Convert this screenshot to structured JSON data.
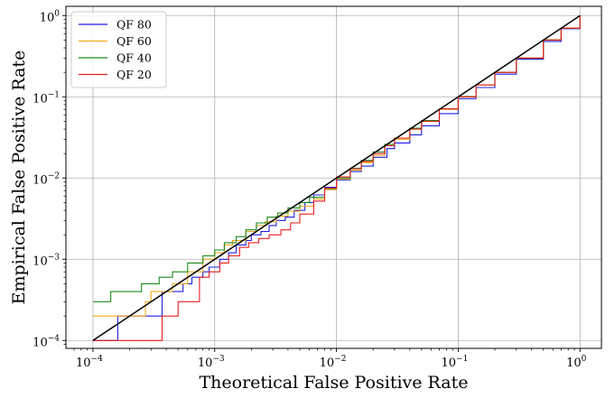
{
  "chart_data": {
    "type": "line",
    "title": "",
    "xlabel": "Theoretical False Positive Rate",
    "ylabel": "Empirical False Positive Rate",
    "xscale": "log",
    "yscale": "log",
    "xlim": [
      6e-05,
      1.5
    ],
    "ylim": [
      8e-05,
      1.3
    ],
    "grid": true,
    "legend_position": "top-left",
    "x_ticks": [
      {
        "value": 0.0001,
        "base": "10",
        "exp": "−4"
      },
      {
        "value": 0.001,
        "base": "10",
        "exp": "−3"
      },
      {
        "value": 0.01,
        "base": "10",
        "exp": "−2"
      },
      {
        "value": 0.1,
        "base": "10",
        "exp": "−1"
      },
      {
        "value": 1,
        "base": "10",
        "exp": "0"
      }
    ],
    "y_ticks": [
      {
        "value": 0.0001,
        "base": "10",
        "exp": "−4"
      },
      {
        "value": 0.001,
        "base": "10",
        "exp": "−3"
      },
      {
        "value": 0.01,
        "base": "10",
        "exp": "−2"
      },
      {
        "value": 0.1,
        "base": "10",
        "exp": "−1"
      },
      {
        "value": 1,
        "base": "10",
        "exp": "0"
      }
    ],
    "series": [
      {
        "name": "QF 80",
        "color": "#1f1fe6",
        "step": true,
        "x": [
          0.0001,
          0.00015,
          0.00016,
          0.00036,
          0.00037,
          0.00055,
          0.00065,
          0.0008,
          0.0009,
          0.0011,
          0.0013,
          0.0015,
          0.0018,
          0.002,
          0.0024,
          0.0028,
          0.0032,
          0.0038,
          0.0045,
          0.0055,
          0.0065,
          0.008,
          0.01,
          0.013,
          0.016,
          0.02,
          0.026,
          0.03,
          0.04,
          0.05,
          0.07,
          0.1,
          0.14,
          0.2,
          0.3,
          0.5,
          0.7,
          1
        ],
        "y": [
          0.0001,
          0.0001,
          0.0002,
          0.0002,
          0.0004,
          0.0005,
          0.0006,
          0.0007,
          0.0008,
          0.001,
          0.0012,
          0.0015,
          0.0017,
          0.002,
          0.0022,
          0.0026,
          0.003,
          0.0033,
          0.004,
          0.005,
          0.0062,
          0.0077,
          0.0095,
          0.012,
          0.014,
          0.018,
          0.023,
          0.027,
          0.034,
          0.044,
          0.062,
          0.095,
          0.13,
          0.19,
          0.29,
          0.48,
          0.69,
          1
        ]
      },
      {
        "name": "QF 60",
        "color": "#f0a81c",
        "step": true,
        "x": [
          0.0001,
          0.00025,
          0.00027,
          0.0003,
          0.00045,
          0.0006,
          0.0008,
          0.001,
          0.0012,
          0.0014,
          0.0018,
          0.0022,
          0.0026,
          0.0032,
          0.004,
          0.005,
          0.0065,
          0.008,
          0.01,
          0.013,
          0.016,
          0.02,
          0.025,
          0.03,
          0.04,
          0.05,
          0.07,
          0.1,
          0.14,
          0.2,
          0.3,
          0.5,
          0.7,
          1
        ],
        "y": [
          0.0002,
          0.0002,
          0.0003,
          0.0004,
          0.0005,
          0.0007,
          0.001,
          0.0012,
          0.0015,
          0.0017,
          0.0022,
          0.0026,
          0.0029,
          0.0034,
          0.0039,
          0.0045,
          0.0055,
          0.0072,
          0.0097,
          0.0125,
          0.0155,
          0.019,
          0.025,
          0.03,
          0.04,
          0.05,
          0.07,
          0.1,
          0.14,
          0.2,
          0.3,
          0.5,
          0.7,
          1
        ]
      },
      {
        "name": "QF 40",
        "color": "#1a8a1a",
        "step": true,
        "x": [
          0.0001,
          0.00014,
          0.00025,
          0.00035,
          0.00045,
          0.0006,
          0.0008,
          0.001,
          0.0012,
          0.0015,
          0.0018,
          0.0022,
          0.0027,
          0.0033,
          0.004,
          0.005,
          0.006,
          0.008,
          0.01,
          0.013,
          0.016,
          0.02,
          0.025,
          0.03,
          0.04,
          0.05,
          0.07,
          0.1,
          0.14,
          0.2,
          0.3,
          0.5,
          0.7,
          1
        ],
        "y": [
          0.0003,
          0.0004,
          0.0005,
          0.0006,
          0.0007,
          0.0009,
          0.0011,
          0.0013,
          0.0016,
          0.0019,
          0.0023,
          0.0028,
          0.0033,
          0.0037,
          0.0043,
          0.005,
          0.0058,
          0.0074,
          0.01,
          0.0132,
          0.0165,
          0.021,
          0.026,
          0.031,
          0.041,
          0.051,
          0.071,
          0.101,
          0.14,
          0.2,
          0.3,
          0.5,
          0.7,
          1
        ]
      },
      {
        "name": "QF 20",
        "color": "#e81d1d",
        "step": true,
        "x": [
          0.0001,
          0.00035,
          0.00037,
          0.0005,
          0.0007,
          0.00075,
          0.0009,
          0.0011,
          0.0013,
          0.0016,
          0.0019,
          0.0023,
          0.0028,
          0.0035,
          0.0042,
          0.005,
          0.0065,
          0.008,
          0.01,
          0.013,
          0.016,
          0.02,
          0.025,
          0.03,
          0.04,
          0.05,
          0.07,
          0.1,
          0.14,
          0.2,
          0.3,
          0.5,
          0.7,
          1
        ],
        "y": [
          0.0001,
          0.0001,
          0.0002,
          0.0003,
          0.0003,
          0.0006,
          0.0007,
          0.0009,
          0.0011,
          0.0014,
          0.0016,
          0.0018,
          0.002,
          0.0023,
          0.0028,
          0.0036,
          0.0052,
          0.0075,
          0.0103,
          0.013,
          0.016,
          0.02,
          0.025,
          0.031,
          0.04,
          0.05,
          0.071,
          0.1,
          0.14,
          0.2,
          0.3,
          0.5,
          0.7,
          1
        ]
      },
      {
        "name": "",
        "color": "#000000",
        "step": false,
        "x": [
          0.0001,
          1
        ],
        "y": [
          0.0001,
          1
        ]
      }
    ]
  }
}
